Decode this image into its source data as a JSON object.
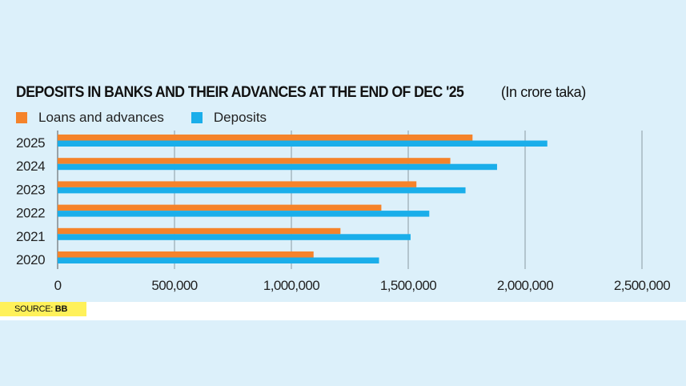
{
  "header": {
    "title": "DEPOSITS IN BANKS AND THEIR ADVANCES AT THE END OF DEC '25",
    "subtitle": "(In crore taka)"
  },
  "source": {
    "label": "SOURCE:",
    "value": "BB"
  },
  "colors": {
    "loans": "#f5832a",
    "deposits": "#1aaeea",
    "grid": "#8a9aa3",
    "background": "#dcf0fa"
  },
  "chart_data": {
    "type": "bar",
    "orientation": "horizontal",
    "title": "DEPOSITS IN BANKS AND THEIR ADVANCES AT THE END OF DEC '25 (In crore taka)",
    "categories": [
      "2025",
      "2024",
      "2023",
      "2022",
      "2021",
      "2020"
    ],
    "series": [
      {
        "name": "Loans and advances",
        "values": [
          1775000,
          1680000,
          1535000,
          1385000,
          1210000,
          1095000
        ]
      },
      {
        "name": "Deposits",
        "values": [
          2095000,
          1880000,
          1745000,
          1590000,
          1510000,
          1375000
        ]
      }
    ],
    "xlim": [
      0,
      2500000
    ],
    "xticks": [
      0,
      500000,
      1000000,
      1500000,
      2000000,
      2500000
    ],
    "xtick_labels": [
      "0",
      "500,000",
      "1,000,000",
      "1,500,000",
      "2,000,000",
      "2,500,000"
    ],
    "xlabel": "",
    "ylabel": "",
    "grid": true,
    "legend_position": "top-left"
  }
}
